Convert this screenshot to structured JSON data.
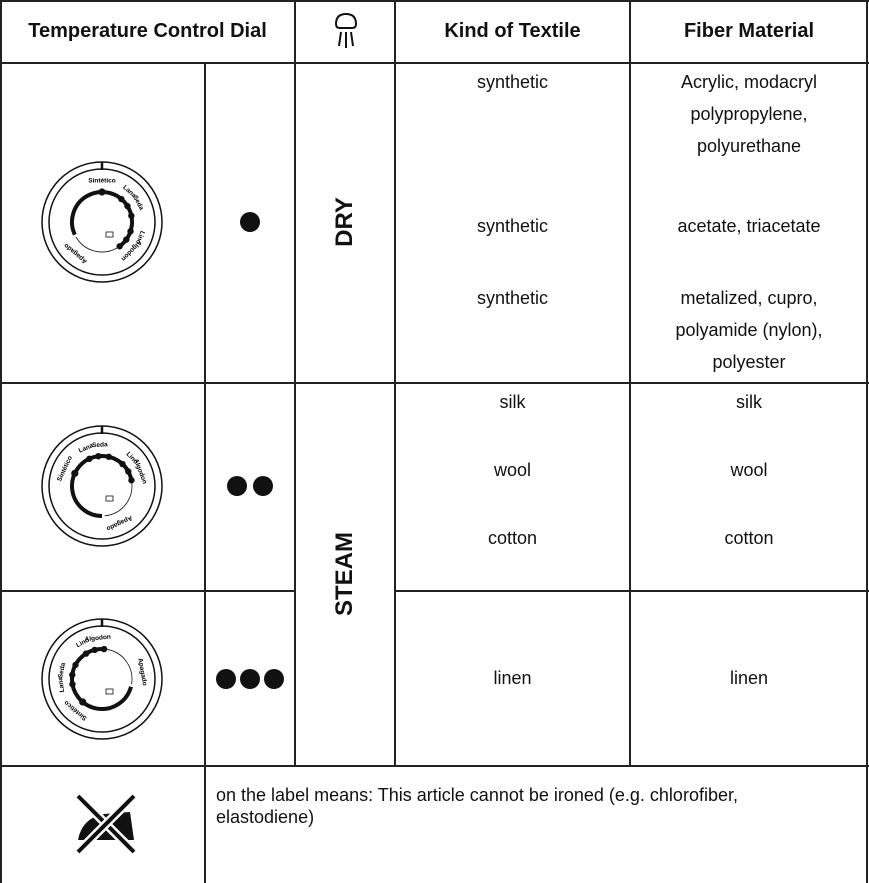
{
  "header": {
    "dial": "Temperature Control Dial",
    "kind": "Kind of Textile",
    "fiber": "Fiber Material"
  },
  "rows": [
    {
      "mode": "DRY",
      "entries": [
        {
          "kind": "synthetic",
          "fiber": "Acrylic, modacryl polypropylene, polyurethane"
        },
        {
          "kind": "synthetic",
          "fiber": "acetate, triacetate"
        },
        {
          "kind": "synthetic",
          "fiber": "metalized, cupro, polyamide (nylon), polyester"
        }
      ]
    },
    {
      "mode": "STEAM",
      "entries": [
        {
          "kind": "silk",
          "fiber": "silk"
        },
        {
          "kind": "wool",
          "fiber": "wool"
        },
        {
          "kind": "cotton",
          "fiber": "cotton"
        },
        {
          "kind": "linen",
          "fiber": "linen"
        }
      ]
    }
  ],
  "dial_labels": {
    "synthetic": "Sintético",
    "wool": "Lana",
    "silk": "Seda",
    "linen": "Lino",
    "cotton": "Algodon",
    "off": "Apagado"
  },
  "note": "on the label means: This article cannot be ironed (e.g. chlorofiber, elastodiene)"
}
